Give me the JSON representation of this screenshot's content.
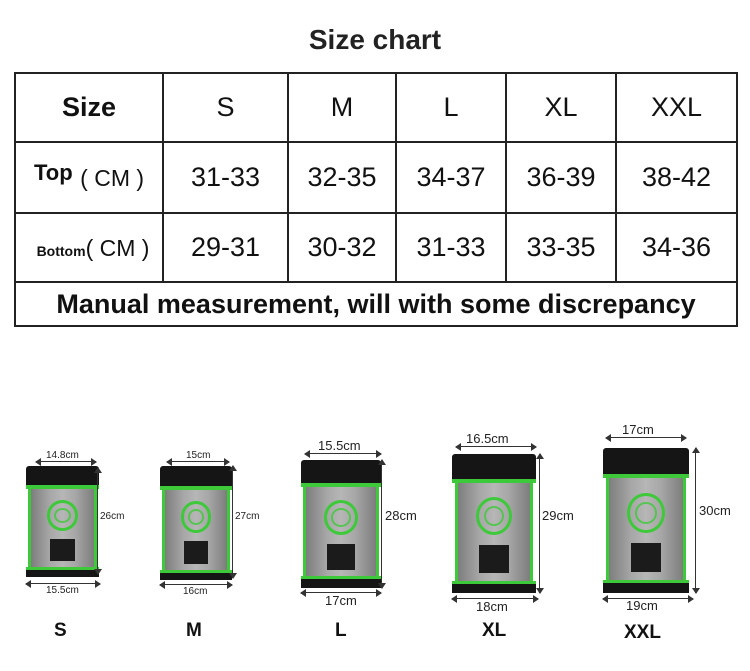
{
  "title": "Size chart",
  "table": {
    "header_label": "Size",
    "sizes": [
      "S",
      "M",
      "L",
      "XL",
      "XXL"
    ],
    "top": {
      "label": "Top",
      "unit": "( CM )",
      "values": [
        "31-33",
        "32-35",
        "34-37",
        "36-39",
        "38-42"
      ]
    },
    "bottom": {
      "label": "Bottom",
      "unit": "( CM )",
      "values": [
        "29-31",
        "30-32",
        "31-33",
        "33-35",
        "34-36"
      ]
    },
    "note": "Manual measurement, will with some discrepancy"
  },
  "sleeves": [
    {
      "size": "S",
      "top_width": "14.8cm",
      "height": "26cm",
      "bottom_width": "15.5cm"
    },
    {
      "size": "M",
      "top_width": "15cm",
      "height": "27cm",
      "bottom_width": "16cm"
    },
    {
      "size": "L",
      "top_width": "15.5cm",
      "height": "28cm",
      "bottom_width": "17cm"
    },
    {
      "size": "XL",
      "top_width": "16.5cm",
      "height": "29cm",
      "bottom_width": "18cm"
    },
    {
      "size": "XXL",
      "top_width": "17cm",
      "height": "30cm",
      "bottom_width": "19cm"
    }
  ],
  "colors": {
    "accent_green": "#3ec93a",
    "note_red": "#d40000",
    "band_black": "#151515"
  }
}
